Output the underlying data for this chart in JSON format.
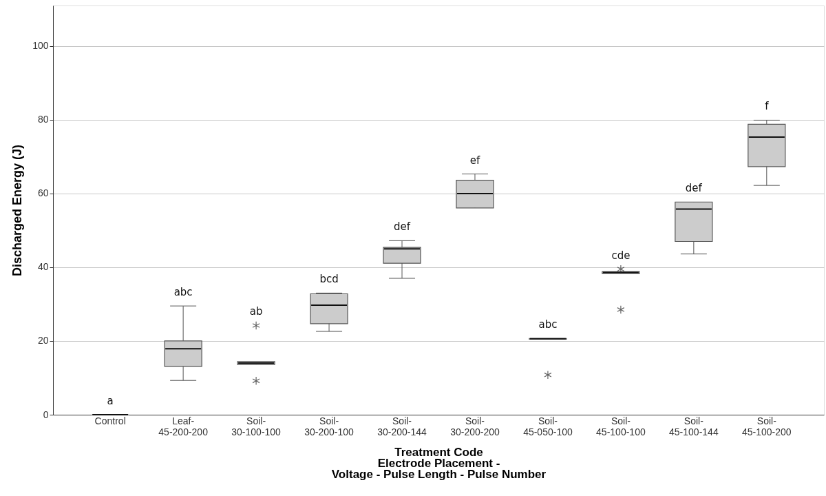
{
  "chart_data": {
    "type": "box",
    "xlabel": "Treatment Code\nElectrode Placement -\nVoltage - Pulse Length - Pulse Number",
    "ylabel": "Discharged Energy (J)",
    "categories": [
      "Control",
      "Leaf-45-200-200",
      "Soil-30-100-100",
      "Soil-30-200-100",
      "Soil-30-200-144",
      "Soil-30-200-200",
      "Soil-45-050-100",
      "Soil-45-100-100",
      "Soil-45-100-144",
      "Soil-45-100-200"
    ],
    "boxes": [
      {
        "low": 0,
        "q1": 0,
        "median": 0,
        "q3": 0,
        "high": 0
      },
      {
        "low": 9.3,
        "q1": 13.1,
        "median": 17.9,
        "q3": 20,
        "high": 29.5
      },
      {
        "low": 13.6,
        "q1": 13.6,
        "median": 14.0,
        "q3": 14.4,
        "high": 14.4,
        "outliers": [
          24.2,
          9.2
        ]
      },
      {
        "low": 22.6,
        "q1": 24.7,
        "median": 29.7,
        "q3": 32.8,
        "high": 33.0
      },
      {
        "low": 37.0,
        "q1": 41.1,
        "median": 45.0,
        "q3": 45.4,
        "high": 47.2
      },
      {
        "low": 56.1,
        "q1": 56.1,
        "median": 60.0,
        "q3": 63.6,
        "high": 65.3
      },
      {
        "low": 20.5,
        "q1": 20.5,
        "median": 20.6,
        "q3": 20.7,
        "high": 20.7,
        "outliers": [
          10.8
        ]
      },
      {
        "low": 38.3,
        "q1": 38.3,
        "median": 38.6,
        "q3": 38.8,
        "high": 38.8,
        "outliers": [
          39.5,
          28.5
        ]
      },
      {
        "low": 43.6,
        "q1": 47.0,
        "median": 55.8,
        "q3": 57.7,
        "high": 57.7
      },
      {
        "low": 62.2,
        "q1": 67.3,
        "median": 75.3,
        "q3": 78.8,
        "high": 79.9
      }
    ],
    "color": "#cccccc",
    "marker": "star",
    "ylim": [
      0,
      111
    ],
    "yticks": [
      0,
      20,
      40,
      60,
      80,
      100
    ],
    "grid": "y",
    "annotations": [
      "a",
      "abc",
      "ab",
      "bcd",
      "def",
      "ef",
      "abc",
      "cde",
      "def",
      "f"
    ]
  }
}
